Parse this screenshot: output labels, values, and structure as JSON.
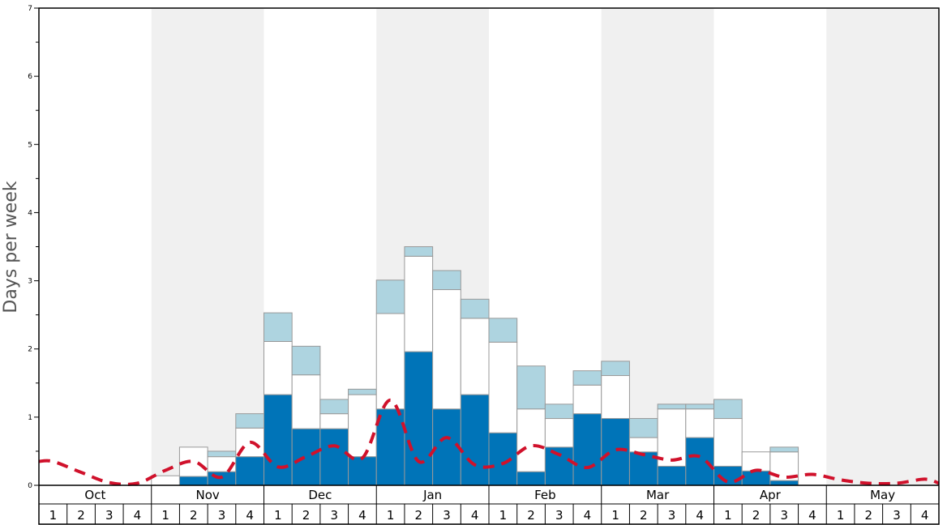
{
  "chart_data": {
    "type": "bar",
    "ylabel": "Days per week",
    "ylim": [
      0,
      7
    ],
    "y_ticks": [
      "0",
      "1",
      "2",
      "3",
      "4",
      "5",
      "6",
      "7"
    ],
    "months": [
      "Oct",
      "Nov",
      "Dec",
      "Jan",
      "Feb",
      "Mar",
      "Apr",
      "May"
    ],
    "weeks": [
      "1",
      "2",
      "3",
      "4"
    ],
    "stacked": true,
    "series": [
      {
        "color": "#0074b8",
        "values": [
          0,
          0,
          0,
          0,
          0,
          0.13,
          0.2,
          0.42,
          1.33,
          0.83,
          0.83,
          0.42,
          1.12,
          1.96,
          1.12,
          1.33,
          0.77,
          0.2,
          0.56,
          1.05,
          0.98,
          0.49,
          0.28,
          0.7,
          0.28,
          0.21,
          0.07,
          0,
          0,
          0,
          0,
          0
        ]
      },
      {
        "color": "#ffffff",
        "values": [
          0,
          0,
          0,
          0,
          0.14,
          0.43,
          0.22,
          0.42,
          0.78,
          0.79,
          0.22,
          0.91,
          1.4,
          1.4,
          1.75,
          1.12,
          1.33,
          0.92,
          0.42,
          0.42,
          0.63,
          0.21,
          0.84,
          0.42,
          0.7,
          0.28,
          0.42,
          0,
          0,
          0,
          0,
          0
        ]
      },
      {
        "color": "#aed4e0",
        "values": [
          0,
          0,
          0,
          0,
          0,
          0,
          0.08,
          0.21,
          0.42,
          0.42,
          0.21,
          0.08,
          0.49,
          0.14,
          0.28,
          0.28,
          0.35,
          0.63,
          0.21,
          0.21,
          0.21,
          0.28,
          0.07,
          0.07,
          0.28,
          0,
          0.07,
          0,
          0,
          0,
          0,
          0
        ]
      }
    ],
    "line": {
      "color": "#d0112b",
      "style": "dashed",
      "values": [
        0.35,
        0.19,
        0.04,
        0.03,
        0.22,
        0.35,
        0.12,
        0.63,
        0.27,
        0.42,
        0.58,
        0.4,
        1.25,
        0.35,
        0.7,
        0.3,
        0.32,
        0.58,
        0.45,
        0.26,
        0.52,
        0.45,
        0.37,
        0.42,
        0.05,
        0.22,
        0.12,
        0.16,
        0.08,
        0.03,
        0.03,
        0.09
      ]
    },
    "shaded_months": [
      "Nov",
      "Jan",
      "Mar",
      "May"
    ],
    "grid": false,
    "legend": "none"
  }
}
